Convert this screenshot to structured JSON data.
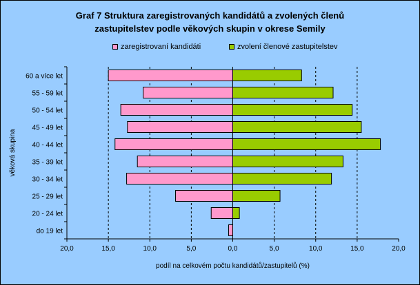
{
  "chart_data": {
    "type": "bar",
    "orientation": "horizontal-diverging",
    "title": "Graf 7 Struktura zaregistrovaných kandidátů a zvolených členů zastupitelstev podle věkových skupin v okrese Semily",
    "title_line1": "Graf 7 Struktura zaregistrovaných kandidátů a zvolených členů",
    "title_line2": "zastupitelstev podle věkových skupin v okrese Semily",
    "xlabel": "podíl na celkovém počtu kandidátů/zastupitelů (%)",
    "ylabel": "věková skupina",
    "xlim": [
      -20,
      20
    ],
    "xticks": [
      -20,
      -15,
      -10,
      -5,
      0,
      5,
      10,
      15,
      20
    ],
    "xtick_labels": [
      "20,0",
      "15,0",
      "10,0",
      "5,0",
      "0,0",
      "5,0",
      "10,0",
      "15,0",
      "20,0"
    ],
    "grid": "vertical dashed",
    "legend_position": "top",
    "background": "#99ccff",
    "categories": [
      "60 a více let",
      "55 - 59 let",
      "50 - 54 let",
      "45 - 49 let",
      "40 - 44 let",
      "35 - 39 let",
      "30 - 34 let",
      "25 - 29 let",
      "20 - 24 let",
      "do 19 let"
    ],
    "series": [
      {
        "name": "zaregistrovaní kandidáti",
        "color": "#ff99cc",
        "side": "left",
        "values": [
          15.0,
          10.8,
          13.5,
          12.7,
          14.2,
          11.5,
          12.8,
          6.9,
          2.6,
          0.5
        ]
      },
      {
        "name": "zvolení členové zastupitelstev",
        "color": "#99cc00",
        "side": "right",
        "values": [
          8.3,
          12.1,
          14.4,
          15.5,
          17.8,
          13.3,
          11.9,
          5.7,
          0.8,
          0.0
        ]
      }
    ]
  }
}
